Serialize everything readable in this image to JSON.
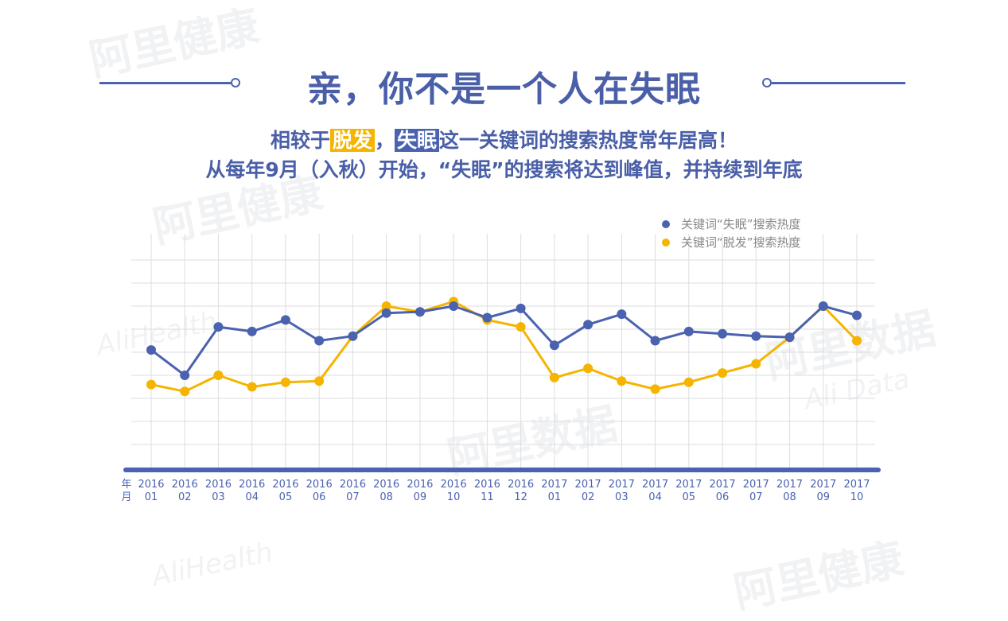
{
  "watermarks": [
    "阿里健康",
    "AliHealth",
    "阿里数据",
    "Ali Data"
  ],
  "title": "亲，你不是一个人在失眠",
  "subtitle1": {
    "pre": "相较于",
    "hl1": "脱发",
    "mid": "，",
    "hl2": "失眠",
    "post": "这一关键词的搜索热度常年居高！"
  },
  "subtitle2": "从每年9月（入秋）开始，“失眠”的搜索将达到峰值，并持续到年底",
  "colors": {
    "insomnia": "#4a62b0",
    "hairloss": "#f5b400",
    "title": "#4a5fa8"
  },
  "chart_data": {
    "type": "line",
    "xlabel": [
      "年",
      "月"
    ],
    "categories": [
      [
        "2016",
        "01"
      ],
      [
        "2016",
        "02"
      ],
      [
        "2016",
        "03"
      ],
      [
        "2016",
        "04"
      ],
      [
        "2016",
        "05"
      ],
      [
        "2016",
        "06"
      ],
      [
        "2016",
        "07"
      ],
      [
        "2016",
        "08"
      ],
      [
        "2016",
        "09"
      ],
      [
        "2016",
        "10"
      ],
      [
        "2016",
        "11"
      ],
      [
        "2016",
        "12"
      ],
      [
        "2017",
        "01"
      ],
      [
        "2017",
        "02"
      ],
      [
        "2017",
        "03"
      ],
      [
        "2017",
        "04"
      ],
      [
        "2017",
        "05"
      ],
      [
        "2017",
        "06"
      ],
      [
        "2017",
        "07"
      ],
      [
        "2017",
        "08"
      ],
      [
        "2017",
        "09"
      ],
      [
        "2017",
        "10"
      ]
    ],
    "ylim": [
      0,
      10
    ],
    "grid": true,
    "y_tick_labels": false,
    "legend_position": "top-right",
    "series": [
      {
        "name": "关键词“失眠”搜索热度",
        "color": "#4a62b0",
        "values": [
          5.1,
          4.0,
          6.1,
          5.9,
          6.4,
          5.5,
          5.7,
          6.7,
          6.75,
          7.0,
          6.5,
          6.9,
          5.3,
          6.2,
          6.65,
          5.5,
          5.9,
          5.8,
          5.7,
          5.65,
          7.0,
          6.6
        ]
      },
      {
        "name": "关键词“脱发”搜索热度",
        "color": "#f5b400",
        "values": [
          3.6,
          3.3,
          4.0,
          3.5,
          3.7,
          3.75,
          5.7,
          7.0,
          6.75,
          7.2,
          6.4,
          6.1,
          3.9,
          4.3,
          3.75,
          3.4,
          3.7,
          4.1,
          4.5,
          5.65,
          7.0,
          5.5
        ]
      }
    ]
  }
}
